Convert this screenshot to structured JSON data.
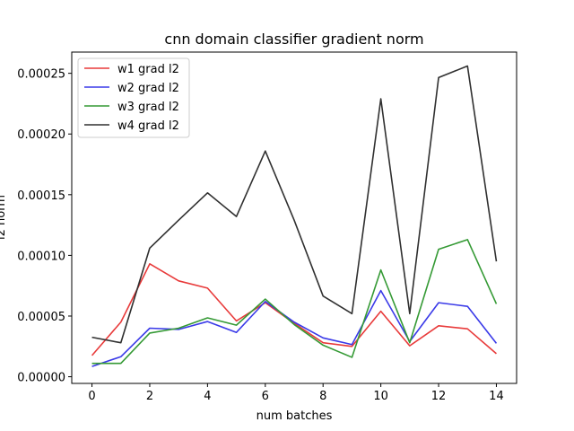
{
  "chart_data": {
    "type": "line",
    "title": "cnn domain classifier gradient norm",
    "xlabel": "num batches",
    "ylabel": "l2 norm",
    "x": [
      0,
      1,
      2,
      3,
      4,
      5,
      6,
      7,
      8,
      9,
      10,
      11,
      12,
      13,
      14
    ],
    "xlim": [
      -0.7,
      14.7
    ],
    "ylim": [
      -5.5e-06,
      0.0002675
    ],
    "xticks": [
      0,
      2,
      4,
      6,
      8,
      10,
      12,
      14
    ],
    "yticks": [
      0.0,
      5e-05,
      0.0001,
      0.00015,
      0.0002,
      0.00025
    ],
    "ytick_labels": [
      "0.00000",
      "0.00005",
      "0.00010",
      "0.00015",
      "0.00020",
      "0.00025"
    ],
    "legend_position": "upper-left",
    "grid": false,
    "series": [
      {
        "name": "w1 grad l2",
        "color": "#e83a3a",
        "values": [
          1.75e-05,
          4.5e-05,
          9.3e-05,
          7.9e-05,
          7.3e-05,
          4.6e-05,
          6.1e-05,
          4.4e-05,
          2.8e-05,
          2.5e-05,
          5.4e-05,
          2.55e-05,
          4.2e-05,
          3.95e-05,
          1.9e-05
        ]
      },
      {
        "name": "w2 grad l2",
        "color": "#3a3ae8",
        "values": [
          8.5e-06,
          1.65e-05,
          4e-05,
          3.9e-05,
          4.55e-05,
          3.65e-05,
          6.2e-05,
          4.5e-05,
          3.2e-05,
          2.65e-05,
          7.1e-05,
          2.9e-05,
          6.1e-05,
          5.8e-05,
          2.75e-05
        ]
      },
      {
        "name": "w3 grad l2",
        "color": "#359a35",
        "values": [
          1.1e-05,
          1.1e-05,
          3.6e-05,
          4e-05,
          4.85e-05,
          4.25e-05,
          6.4e-05,
          4.3e-05,
          2.6e-05,
          1.6e-05,
          8.8e-05,
          2.8e-05,
          0.000105,
          0.000113,
          6e-05
        ]
      },
      {
        "name": "w4 grad l2",
        "color": "#303030",
        "values": [
          3.25e-05,
          2.8e-05,
          0.000106,
          0.000129,
          0.0001515,
          0.000132,
          0.000186,
          0.000129,
          6.65e-05,
          5.2e-05,
          0.000229,
          5.2e-05,
          0.0002465,
          0.000256,
          9.5e-05
        ]
      }
    ]
  }
}
